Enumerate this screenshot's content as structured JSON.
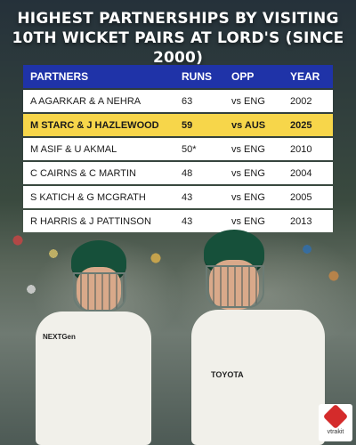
{
  "title_lines": [
    "HIGHEST PARTNERSHIPS BY VISITING",
    "10TH WICKET PAIRS AT LORD'S (SINCE 2000)"
  ],
  "table": {
    "headers": {
      "partners": "PARTNERS",
      "runs": "RUNS",
      "opp": "OPP",
      "year": "YEAR"
    },
    "rows": [
      {
        "partners": "A AGARKAR & A NEHRA",
        "runs": "63",
        "opp": "vs ENG",
        "year": "2002"
      },
      {
        "partners": "M STARC & J HAZLEWOOD",
        "runs": "59",
        "opp": "vs AUS",
        "year": "2025"
      },
      {
        "partners": "M ASIF & U AKMAL",
        "runs": "50*",
        "opp": "vs ENG",
        "year": "2010"
      },
      {
        "partners": "C CAIRNS & C MARTIN",
        "runs": "48",
        "opp": "vs ENG",
        "year": "2004"
      },
      {
        "partners": "S KATICH & G MCGRATH",
        "runs": "43",
        "opp": "vs ENG",
        "year": "2005"
      },
      {
        "partners": "R HARRIS & J PATTINSON",
        "runs": "43",
        "opp": "vs ENG",
        "year": "2013"
      }
    ],
    "highlighted_row": 1,
    "colors": {
      "header": "#1f33a8",
      "highlight": "#f7d64a",
      "row": "#ffffff"
    }
  },
  "photo": {
    "sponsor_left": "NEXTGen",
    "sponsor_right": "TOYOTA"
  },
  "brand": {
    "name": "vtrakit",
    "icon": "vtrakit-logo-icon"
  }
}
